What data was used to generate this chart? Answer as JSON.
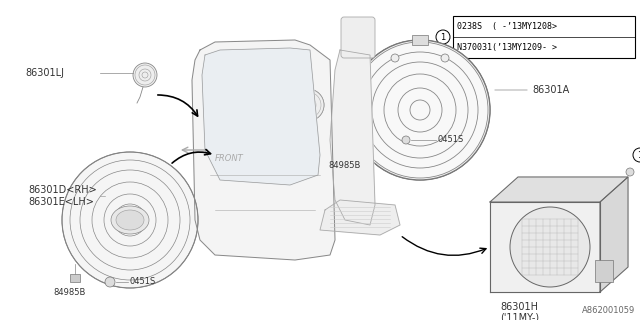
{
  "bg_color": "#ffffff",
  "part_number_bottom": "A862001059",
  "table_row1": "0238S  ( -’13MY1208>",
  "table_row2": "N370031(’13MY1209- >",
  "line_color": "#888888",
  "text_color": "#333333",
  "dark_color": "#444444",
  "font_size": 7,
  "small_font_size": 6,
  "fig_width": 6.4,
  "fig_height": 3.2,
  "dpi": 100
}
